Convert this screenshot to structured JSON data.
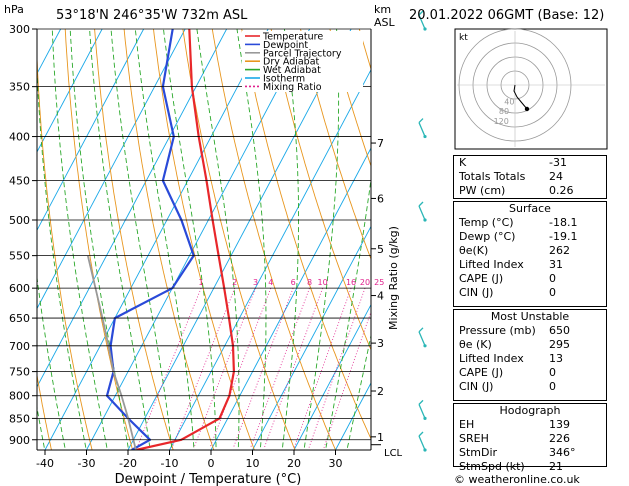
{
  "header": {
    "location": "53°18'N 246°35'W 732m ASL",
    "datetime": "20.01.2022 06GMT (Base: 12)",
    "hpa_unit": "hPa",
    "km_unit": "km",
    "asl_unit": "ASL",
    "credit": "© weatheronline.co.uk"
  },
  "chart_data": {
    "type": "line",
    "subtype": "skew-t log-p",
    "xlabel": "Dewpoint / Temperature (°C)",
    "ylabel_right": "Mixing Ratio (g/kg)",
    "xlim": [
      -40,
      40
    ],
    "pressure_range": [
      300,
      925
    ],
    "pressure_ticks": [
      300,
      350,
      400,
      450,
      500,
      550,
      600,
      650,
      700,
      750,
      800,
      850,
      900
    ],
    "temp_ticks": [
      -40,
      -30,
      -20,
      -10,
      0,
      10,
      20,
      30
    ],
    "km_ticks": [
      {
        "label": "7",
        "p": 407
      },
      {
        "label": "6",
        "p": 472
      },
      {
        "label": "5",
        "p": 540
      },
      {
        "label": "4",
        "p": 612
      },
      {
        "label": "3",
        "p": 695
      },
      {
        "label": "2",
        "p": 790
      },
      {
        "label": "1",
        "p": 893
      }
    ],
    "lcl": {
      "label": "LCL",
      "p": 912
    },
    "mixing_ratio_labels": [
      "1",
      "2",
      "3",
      "4",
      "6",
      "8",
      "10",
      "16",
      "20",
      "25"
    ],
    "mixing_ratios": [
      1,
      2,
      3,
      4,
      6,
      8,
      10,
      16,
      20,
      25
    ],
    "legend": [
      "Temperature",
      "Dewpoint",
      "Parcel Trajectory",
      "Dry Adiabat",
      "Wet Adiabat",
      "Isotherm",
      "Mixing Ratio"
    ],
    "colors": {
      "temperature": "#e8272b",
      "dewpoint": "#2a4ad8",
      "parcel": "#999999",
      "dry_adiabat": "#e8961e",
      "wet_adiabat": "#2aa82a",
      "isotherm": "#19a8e8",
      "mixing_ratio": "#e0208c"
    },
    "series": [
      {
        "name": "Temperature",
        "points": [
          [
            925,
            -18.1
          ],
          [
            900,
            -8.5
          ],
          [
            850,
            -2.0
          ],
          [
            800,
            -2.5
          ],
          [
            750,
            -4.5
          ],
          [
            700,
            -8.0
          ],
          [
            650,
            -12.5
          ],
          [
            600,
            -17.5
          ],
          [
            550,
            -23.0
          ],
          [
            500,
            -29.0
          ],
          [
            450,
            -35.5
          ],
          [
            400,
            -43.0
          ],
          [
            350,
            -51.0
          ],
          [
            300,
            -59.0
          ]
        ]
      },
      {
        "name": "Dewpoint",
        "points": [
          [
            925,
            -19.1
          ],
          [
            900,
            -16.0
          ],
          [
            850,
            -24.0
          ],
          [
            800,
            -32.0
          ],
          [
            750,
            -33.5
          ],
          [
            700,
            -37.5
          ],
          [
            650,
            -40.0
          ],
          [
            600,
            -30.0
          ],
          [
            550,
            -29.0
          ],
          [
            500,
            -36.5
          ],
          [
            450,
            -46.0
          ],
          [
            400,
            -49.0
          ],
          [
            350,
            -58.0
          ],
          [
            300,
            -63.0
          ]
        ]
      },
      {
        "name": "Parcel Trajectory",
        "points": [
          [
            925,
            -18.1
          ],
          [
            900,
            -20.0
          ],
          [
            850,
            -24.0
          ],
          [
            800,
            -28.5
          ],
          [
            750,
            -33.5
          ],
          [
            700,
            -38.0
          ],
          [
            650,
            -43.0
          ],
          [
            600,
            -48.5
          ],
          [
            550,
            -54.5
          ]
        ]
      }
    ]
  },
  "wind_barbs": [
    {
      "p": 300
    },
    {
      "p": 400
    },
    {
      "p": 500
    },
    {
      "p": 700
    },
    {
      "p": 850
    },
    {
      "p": 925
    }
  ],
  "hodograph": {
    "unit_label": "kt",
    "ring_labels": [
      "40",
      "80",
      "120"
    ],
    "points": [
      [
        0,
        0
      ],
      [
        -1,
        -6
      ],
      [
        2,
        -12
      ],
      [
        7,
        -18
      ],
      [
        12,
        -24
      ]
    ]
  },
  "indices": {
    "rows": [
      {
        "key": "K",
        "value": "-31"
      },
      {
        "key": "Totals Totals",
        "value": "24"
      },
      {
        "key": "PW (cm)",
        "value": "0.26"
      }
    ]
  },
  "surface": {
    "title": "Surface",
    "rows": [
      {
        "key": "Temp (°C)",
        "value": "-18.1"
      },
      {
        "key": "Dewp (°C)",
        "value": "-19.1"
      },
      {
        "key": "θe(K)",
        "value": "262"
      },
      {
        "key": "Lifted Index",
        "value": "31"
      },
      {
        "key": "CAPE (J)",
        "value": "0"
      },
      {
        "key": "CIN (J)",
        "value": "0"
      }
    ]
  },
  "most_unstable": {
    "title": "Most Unstable",
    "rows": [
      {
        "key": "Pressure (mb)",
        "value": "650"
      },
      {
        "key": "θe (K)",
        "value": "295"
      },
      {
        "key": "Lifted Index",
        "value": "13"
      },
      {
        "key": "CAPE (J)",
        "value": "0"
      },
      {
        "key": "CIN (J)",
        "value": "0"
      }
    ]
  },
  "hodograph_table": {
    "title": "Hodograph",
    "rows": [
      {
        "key": "EH",
        "value": "139"
      },
      {
        "key": "SREH",
        "value": "226"
      },
      {
        "key": "StmDir",
        "value": "346°"
      },
      {
        "key": "StmSpd (kt)",
        "value": "21"
      }
    ]
  }
}
